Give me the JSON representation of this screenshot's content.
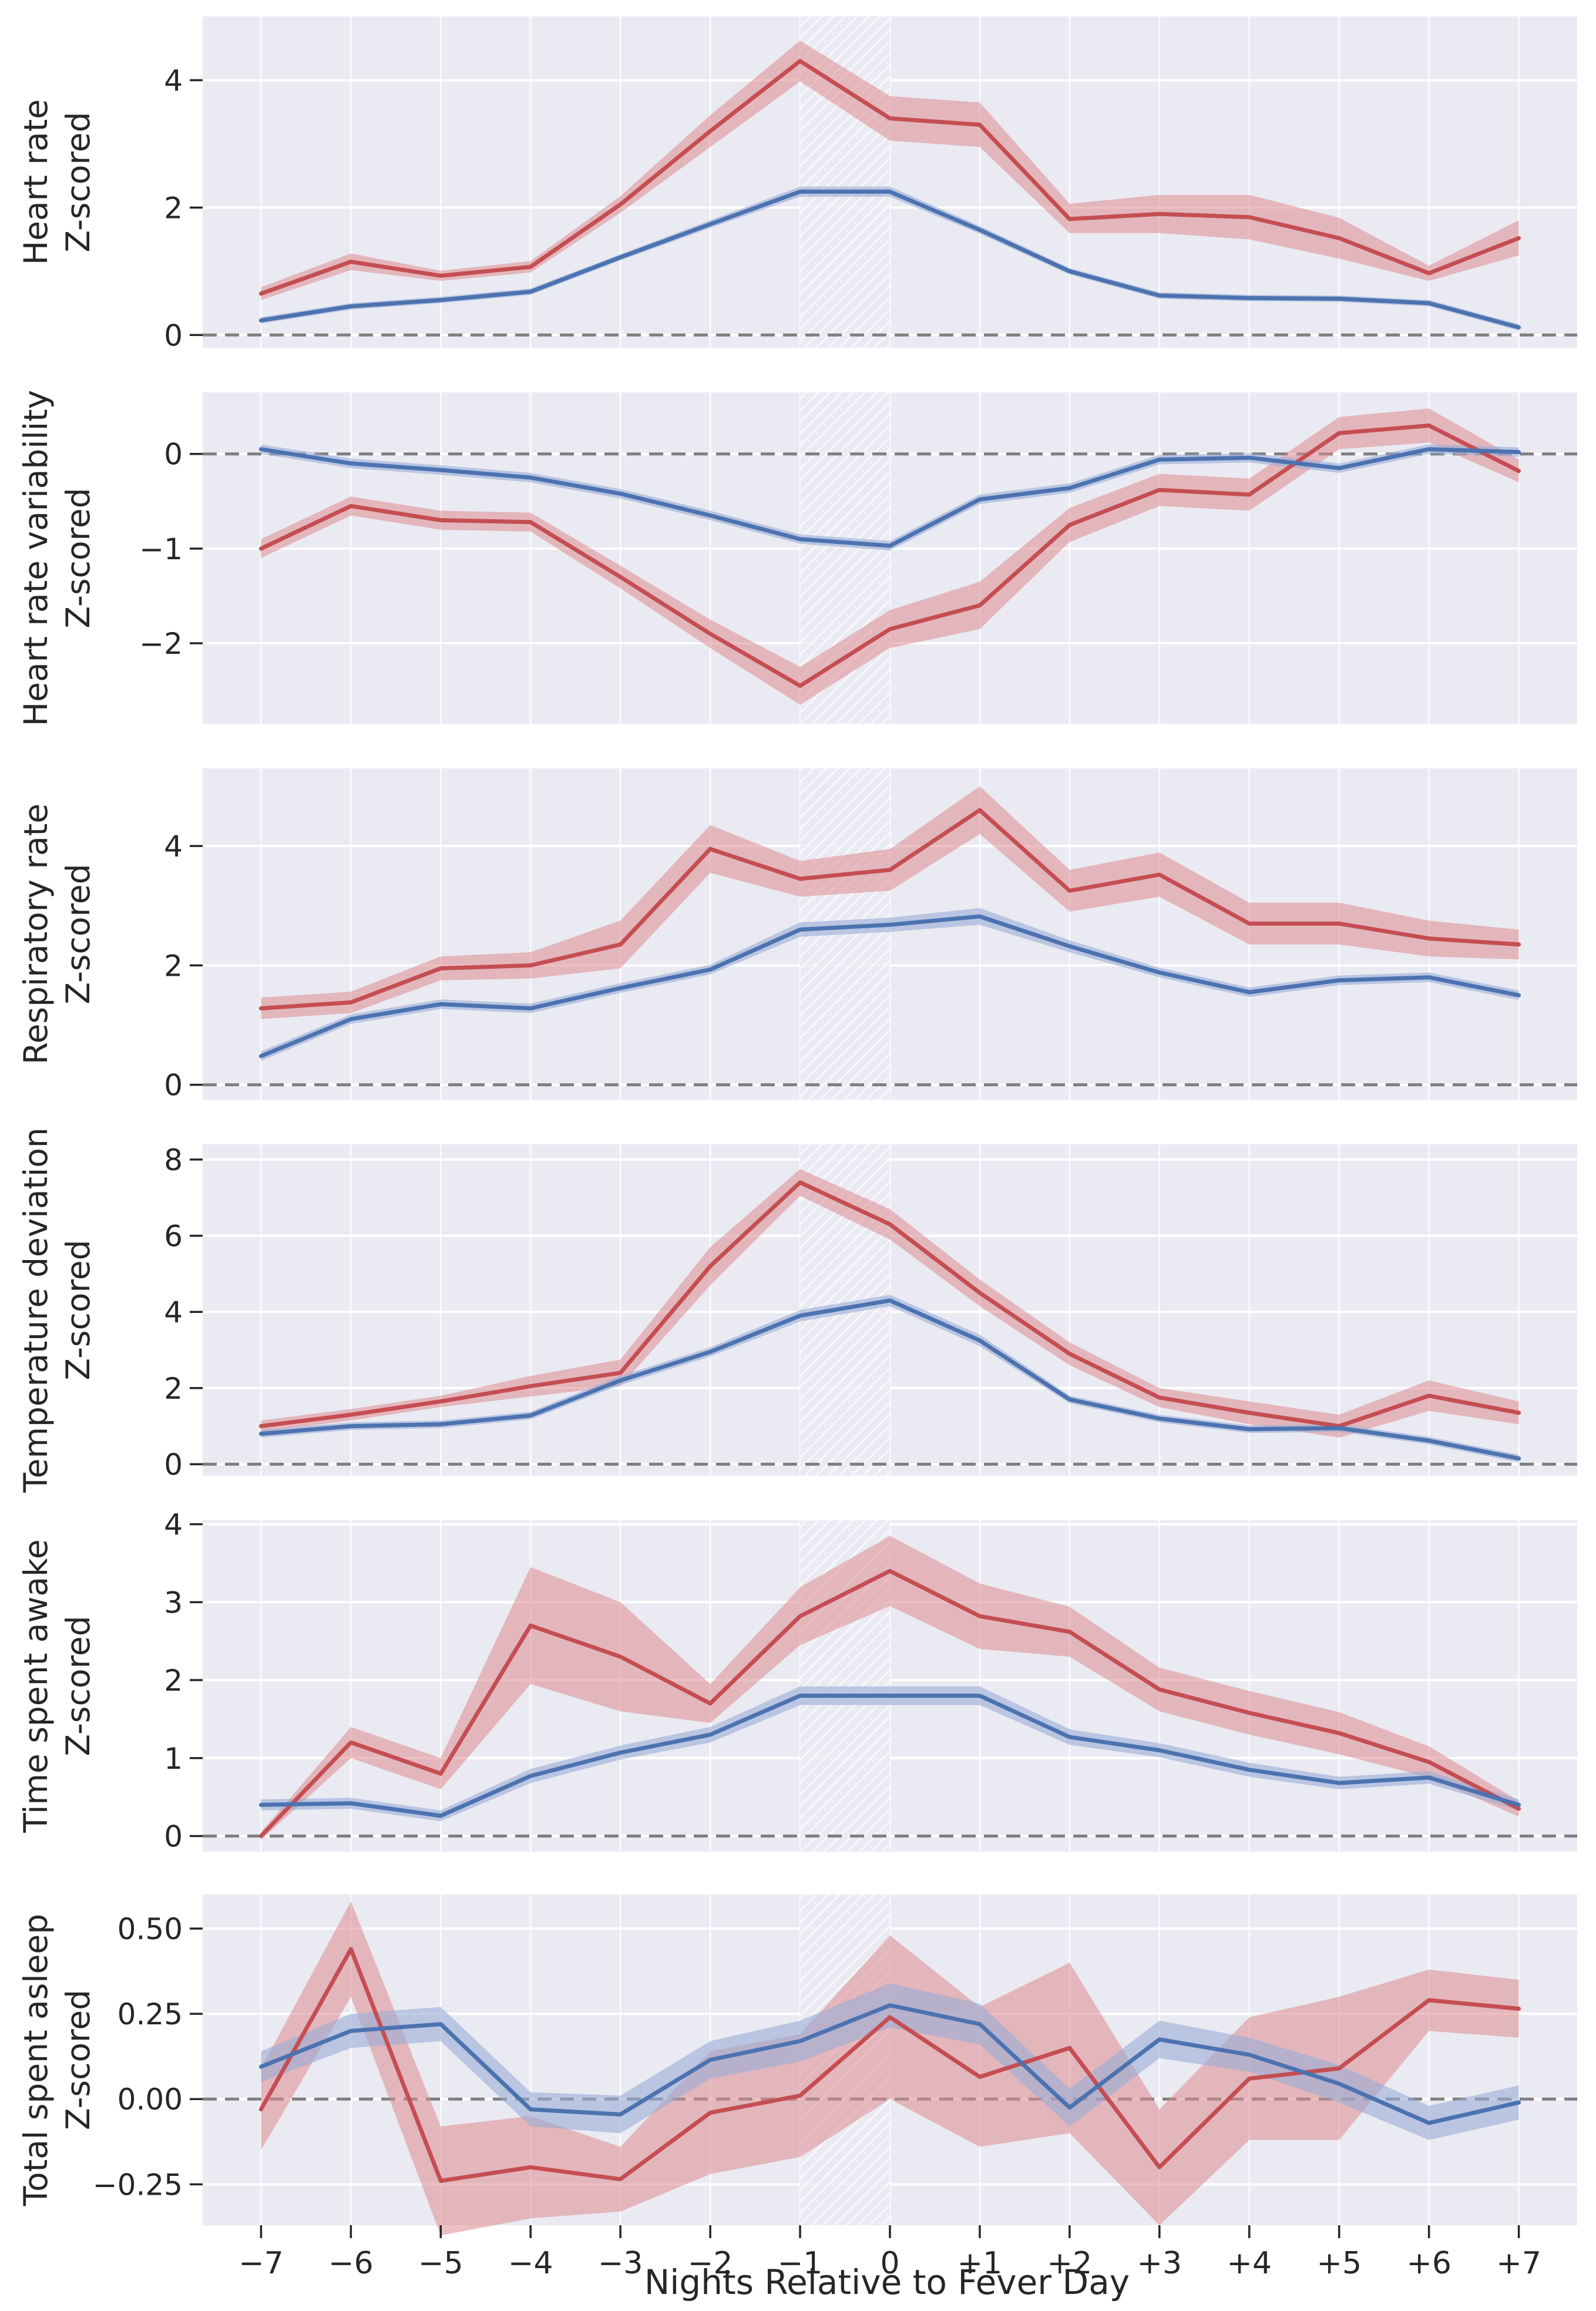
{
  "figure": {
    "x_axis_label": "Nights Relative to Fever Day"
  },
  "colors": {
    "panel_bg": "#eaeaf2",
    "grid": "#ffffff",
    "red": "#c44e52",
    "blue": "#4c72b0",
    "red_band": "#dd8a8f",
    "blue_band": "#98abd6",
    "zero_line": "#7f7f7f",
    "hatch": "#ffffff"
  },
  "chart_data": [
    {
      "type": "line",
      "title": "",
      "ylabel": [
        "Heart rate",
        "Z-scored"
      ],
      "ylim": [
        -0.2,
        5.0
      ],
      "yticks": [
        0,
        2,
        4
      ],
      "ytick_labels": [
        "0",
        "2",
        "4"
      ],
      "x": [
        -7,
        -6,
        -5,
        -4,
        -3,
        -2,
        -1,
        0,
        1,
        2,
        3,
        4,
        5,
        6,
        7
      ],
      "series": [
        {
          "name": "red",
          "values": [
            0.65,
            1.15,
            0.93,
            1.07,
            2.05,
            3.2,
            4.3,
            3.4,
            3.3,
            1.82,
            1.9,
            1.85,
            1.52,
            0.97,
            1.52
          ],
          "lower": [
            0.55,
            1.02,
            0.85,
            0.98,
            1.92,
            2.95,
            3.98,
            3.05,
            2.95,
            1.6,
            1.6,
            1.5,
            1.2,
            0.85,
            1.25
          ],
          "upper": [
            0.75,
            1.28,
            1.01,
            1.16,
            2.18,
            3.45,
            4.62,
            3.75,
            3.65,
            2.06,
            2.2,
            2.2,
            1.84,
            1.09,
            1.8
          ]
        },
        {
          "name": "blue",
          "values": [
            0.23,
            0.45,
            0.55,
            0.68,
            1.22,
            1.74,
            2.25,
            2.25,
            1.65,
            1.0,
            0.62,
            0.58,
            0.57,
            0.5,
            0.12
          ],
          "lower": [
            0.18,
            0.4,
            0.5,
            0.63,
            1.17,
            1.68,
            2.17,
            2.17,
            1.59,
            0.95,
            0.57,
            0.53,
            0.52,
            0.45,
            0.07
          ],
          "upper": [
            0.28,
            0.5,
            0.6,
            0.73,
            1.27,
            1.8,
            2.33,
            2.33,
            1.71,
            1.05,
            0.67,
            0.63,
            0.62,
            0.55,
            0.17
          ]
        }
      ]
    },
    {
      "type": "line",
      "title": "",
      "ylabel": [
        "Heart rate variability",
        "Z-scored"
      ],
      "ylim": [
        -2.85,
        0.65
      ],
      "yticks": [
        0,
        -1,
        -2
      ],
      "ytick_labels": [
        "0",
        "−1",
        "−2"
      ],
      "x": [
        -7,
        -6,
        -5,
        -4,
        -3,
        -2,
        -1,
        0,
        1,
        2,
        3,
        4,
        5,
        6,
        7
      ],
      "series": [
        {
          "name": "red",
          "values": [
            -1.0,
            -0.55,
            -0.7,
            -0.72,
            -1.3,
            -1.9,
            -2.45,
            -1.85,
            -1.6,
            -0.75,
            -0.38,
            -0.43,
            0.22,
            0.3,
            -0.18
          ],
          "lower": [
            -1.1,
            -0.65,
            -0.8,
            -0.82,
            -1.42,
            -2.05,
            -2.65,
            -2.05,
            -1.85,
            -0.93,
            -0.55,
            -0.6,
            0.05,
            0.12,
            -0.3
          ],
          "upper": [
            -0.9,
            -0.45,
            -0.6,
            -0.62,
            -1.18,
            -1.75,
            -2.25,
            -1.65,
            -1.35,
            -0.57,
            -0.21,
            -0.26,
            0.39,
            0.48,
            -0.06
          ]
        },
        {
          "name": "blue",
          "values": [
            0.05,
            -0.1,
            -0.17,
            -0.25,
            -0.42,
            -0.65,
            -0.9,
            -0.97,
            -0.48,
            -0.36,
            -0.06,
            -0.04,
            -0.15,
            0.05,
            0.02
          ],
          "lower": [
            0.0,
            -0.15,
            -0.22,
            -0.3,
            -0.47,
            -0.7,
            -0.95,
            -1.02,
            -0.53,
            -0.41,
            -0.11,
            -0.09,
            -0.2,
            0.0,
            -0.03
          ],
          "upper": [
            0.1,
            -0.05,
            -0.12,
            -0.2,
            -0.37,
            -0.6,
            -0.85,
            -0.92,
            -0.43,
            -0.31,
            -0.01,
            0.01,
            -0.1,
            0.1,
            0.07
          ]
        }
      ]
    },
    {
      "type": "line",
      "title": "",
      "ylabel": [
        "Respiratory rate",
        "Z-scored"
      ],
      "ylim": [
        -0.25,
        5.3
      ],
      "yticks": [
        0,
        2,
        4
      ],
      "ytick_labels": [
        "0",
        "2",
        "4"
      ],
      "x": [
        -7,
        -6,
        -5,
        -4,
        -3,
        -2,
        -1,
        0,
        1,
        2,
        3,
        4,
        5,
        6,
        7
      ],
      "series": [
        {
          "name": "red",
          "values": [
            1.28,
            1.38,
            1.95,
            2.0,
            2.35,
            3.95,
            3.45,
            3.6,
            4.6,
            3.25,
            3.52,
            2.7,
            2.7,
            2.45,
            2.35
          ],
          "lower": [
            1.1,
            1.2,
            1.75,
            1.78,
            1.95,
            3.55,
            3.15,
            3.25,
            4.2,
            2.9,
            3.15,
            2.35,
            2.35,
            2.15,
            2.1
          ],
          "upper": [
            1.46,
            1.56,
            2.15,
            2.22,
            2.75,
            4.35,
            3.75,
            3.95,
            5.0,
            3.6,
            3.89,
            3.05,
            3.05,
            2.75,
            2.6
          ]
        },
        {
          "name": "blue",
          "values": [
            0.48,
            1.1,
            1.35,
            1.28,
            1.62,
            1.93,
            2.6,
            2.68,
            2.82,
            2.32,
            1.88,
            1.55,
            1.75,
            1.8,
            1.5
          ],
          "lower": [
            0.4,
            1.02,
            1.27,
            1.2,
            1.54,
            1.85,
            2.48,
            2.56,
            2.68,
            2.22,
            1.8,
            1.47,
            1.67,
            1.72,
            1.42
          ],
          "upper": [
            0.56,
            1.18,
            1.43,
            1.36,
            1.7,
            2.01,
            2.72,
            2.8,
            2.96,
            2.42,
            1.96,
            1.63,
            1.83,
            1.88,
            1.58
          ]
        }
      ]
    },
    {
      "type": "line",
      "title": "",
      "ylabel": [
        "Temperature deviation",
        "Z-scored"
      ],
      "ylim": [
        -0.3,
        8.4
      ],
      "yticks": [
        0,
        2,
        4,
        6,
        8
      ],
      "ytick_labels": [
        "0",
        "2",
        "4",
        "6",
        "8"
      ],
      "x": [
        -7,
        -6,
        -5,
        -4,
        -3,
        -2,
        -1,
        0,
        1,
        2,
        3,
        4,
        5,
        6,
        7
      ],
      "series": [
        {
          "name": "red",
          "values": [
            1.0,
            1.3,
            1.65,
            2.05,
            2.4,
            5.2,
            7.4,
            6.3,
            4.5,
            2.9,
            1.75,
            1.35,
            1.0,
            1.8,
            1.35
          ],
          "lower": [
            0.85,
            1.15,
            1.5,
            1.78,
            2.05,
            4.7,
            7.05,
            5.9,
            4.15,
            2.6,
            1.5,
            1.05,
            0.7,
            1.4,
            1.05
          ],
          "upper": [
            1.15,
            1.45,
            1.8,
            2.32,
            2.75,
            5.7,
            7.75,
            6.7,
            4.85,
            3.2,
            2.0,
            1.65,
            1.3,
            2.2,
            1.65
          ]
        },
        {
          "name": "blue",
          "values": [
            0.8,
            1.0,
            1.05,
            1.28,
            2.2,
            2.95,
            3.9,
            4.3,
            3.25,
            1.7,
            1.2,
            0.92,
            0.95,
            0.62,
            0.15
          ],
          "lower": [
            0.7,
            0.9,
            0.95,
            1.18,
            2.08,
            2.83,
            3.75,
            4.15,
            3.1,
            1.6,
            1.1,
            0.82,
            0.85,
            0.52,
            0.05
          ],
          "upper": [
            0.9,
            1.1,
            1.15,
            1.38,
            2.32,
            3.07,
            4.05,
            4.45,
            3.4,
            1.8,
            1.3,
            1.02,
            1.05,
            0.72,
            0.25
          ]
        }
      ]
    },
    {
      "type": "line",
      "title": "",
      "ylabel": [
        "Time spent awake",
        "Z-scored"
      ],
      "ylim": [
        -0.2,
        4.05
      ],
      "yticks": [
        0,
        1,
        2,
        3,
        4
      ],
      "ytick_labels": [
        "0",
        "1",
        "2",
        "3",
        "4"
      ],
      "x": [
        -7,
        -6,
        -5,
        -4,
        -3,
        -2,
        -1,
        0,
        1,
        2,
        3,
        4,
        5,
        6,
        7
      ],
      "series": [
        {
          "name": "red",
          "values": [
            0.0,
            1.2,
            0.8,
            2.7,
            2.3,
            1.7,
            2.82,
            3.4,
            2.82,
            2.62,
            1.88,
            1.58,
            1.32,
            0.95,
            0.35
          ],
          "lower": [
            -0.05,
            1.0,
            0.6,
            1.95,
            1.6,
            1.45,
            2.45,
            2.95,
            2.4,
            2.3,
            1.6,
            1.3,
            1.05,
            0.75,
            0.25
          ],
          "upper": [
            0.05,
            1.4,
            1.0,
            3.45,
            3.0,
            1.95,
            3.19,
            3.85,
            3.24,
            2.94,
            2.16,
            1.86,
            1.59,
            1.15,
            0.45
          ]
        },
        {
          "name": "blue",
          "values": [
            0.4,
            0.42,
            0.26,
            0.77,
            1.07,
            1.3,
            1.8,
            1.8,
            1.8,
            1.27,
            1.1,
            0.85,
            0.68,
            0.75,
            0.4
          ],
          "lower": [
            0.33,
            0.35,
            0.19,
            0.68,
            0.98,
            1.2,
            1.68,
            1.68,
            1.68,
            1.17,
            1.01,
            0.76,
            0.6,
            0.67,
            0.33
          ],
          "upper": [
            0.47,
            0.49,
            0.33,
            0.86,
            1.16,
            1.4,
            1.92,
            1.92,
            1.92,
            1.37,
            1.19,
            0.94,
            0.76,
            0.83,
            0.47
          ]
        }
      ]
    },
    {
      "type": "line",
      "title": "",
      "ylabel": [
        "Total spent asleep",
        "Z-scored"
      ],
      "ylim": [
        -0.37,
        0.6
      ],
      "yticks": [
        0.5,
        0.25,
        0.0,
        -0.25
      ],
      "ytick_labels": [
        "0.50",
        "0.25",
        "0.00",
        "−0.25"
      ],
      "x": [
        -7,
        -6,
        -5,
        -4,
        -3,
        -2,
        -1,
        0,
        1,
        2,
        3,
        4,
        5,
        6,
        7
      ],
      "series": [
        {
          "name": "red",
          "values": [
            -0.03,
            0.44,
            -0.24,
            -0.2,
            -0.235,
            -0.04,
            0.01,
            0.24,
            0.065,
            0.15,
            -0.2,
            0.06,
            0.09,
            0.29,
            0.265
          ],
          "lower": [
            -0.15,
            0.3,
            -0.4,
            -0.35,
            -0.33,
            -0.22,
            -0.17,
            0.0,
            -0.14,
            -0.1,
            -0.37,
            -0.12,
            -0.12,
            0.2,
            0.18
          ],
          "upper": [
            0.09,
            0.58,
            -0.08,
            -0.05,
            -0.14,
            0.14,
            0.19,
            0.48,
            0.27,
            0.4,
            -0.03,
            0.24,
            0.3,
            0.38,
            0.35
          ]
        },
        {
          "name": "blue",
          "values": [
            0.095,
            0.2,
            0.22,
            -0.03,
            -0.045,
            0.115,
            0.17,
            0.275,
            0.22,
            -0.025,
            0.175,
            0.13,
            0.045,
            -0.07,
            -0.01
          ],
          "lower": [
            0.05,
            0.15,
            0.17,
            -0.08,
            -0.1,
            0.06,
            0.11,
            0.21,
            0.16,
            -0.08,
            0.12,
            0.08,
            -0.01,
            -0.12,
            -0.06
          ],
          "upper": [
            0.14,
            0.25,
            0.27,
            0.02,
            0.01,
            0.17,
            0.23,
            0.34,
            0.28,
            0.03,
            0.23,
            0.18,
            0.1,
            -0.02,
            0.04
          ]
        }
      ]
    }
  ],
  "x_ticks": {
    "values": [
      -7,
      -6,
      -5,
      -4,
      -3,
      -2,
      -1,
      0,
      1,
      2,
      3,
      4,
      5,
      6,
      7
    ],
    "labels": [
      "−7",
      "−6",
      "−5",
      "−4",
      "−3",
      "−2",
      "−1",
      "0",
      "+1",
      "+2",
      "+3",
      "+4",
      "+5",
      "+6",
      "+7"
    ]
  },
  "highlight_span": [
    -1,
    0
  ]
}
